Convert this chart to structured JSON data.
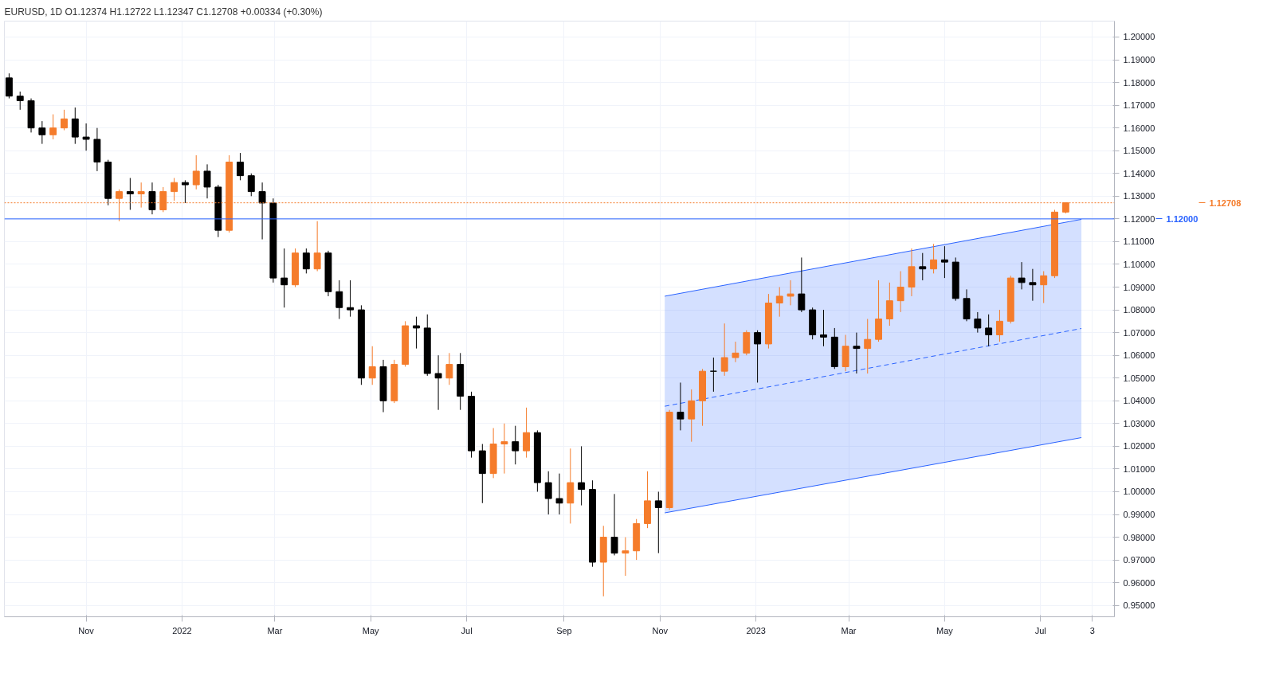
{
  "chart_data": {
    "type": "candlestick",
    "title": "EURUSD, 1D  O1.12374 H1.12722 L1.12347 C1.12708 +0.00334 (+0.30%)",
    "x": [
      "2021-09-13",
      "2021-09-20",
      "2021-09-27",
      "2021-10-04",
      "2021-10-11",
      "2021-10-18",
      "2021-10-25",
      "2021-11-01",
      "2021-11-08",
      "2021-11-15",
      "2021-11-22",
      "2021-11-29",
      "2021-12-06",
      "2021-12-13",
      "2021-12-20",
      "2021-12-27",
      "2022-01-03",
      "2022-01-10",
      "2022-01-17",
      "2022-01-24",
      "2022-01-31",
      "2022-02-07",
      "2022-02-14",
      "2022-02-21",
      "2022-02-28",
      "2022-03-07",
      "2022-03-14",
      "2022-03-21",
      "2022-03-28",
      "2022-04-04",
      "2022-04-11",
      "2022-04-18",
      "2022-04-25",
      "2022-05-02",
      "2022-05-09",
      "2022-05-16",
      "2022-05-23",
      "2022-05-30",
      "2022-06-06",
      "2022-06-13",
      "2022-06-20",
      "2022-06-27",
      "2022-07-04",
      "2022-07-11",
      "2022-07-18",
      "2022-07-25",
      "2022-08-01",
      "2022-08-08",
      "2022-08-15",
      "2022-08-22",
      "2022-08-29",
      "2022-09-05",
      "2022-09-12",
      "2022-09-19",
      "2022-09-26",
      "2022-10-03",
      "2022-10-10",
      "2022-10-17",
      "2022-10-24",
      "2022-10-31",
      "2022-11-07",
      "2022-11-14",
      "2022-11-21",
      "2022-11-28",
      "2022-12-05",
      "2022-12-12",
      "2022-12-19",
      "2022-12-26",
      "2023-01-02",
      "2023-01-09",
      "2023-01-16",
      "2023-01-23",
      "2023-01-30",
      "2023-02-06",
      "2023-02-13",
      "2023-02-20",
      "2023-02-27",
      "2023-03-06",
      "2023-03-13",
      "2023-03-20",
      "2023-03-27",
      "2023-04-03",
      "2023-04-10",
      "2023-04-17",
      "2023-04-24",
      "2023-05-01",
      "2023-05-08",
      "2023-05-15",
      "2023-05-22",
      "2023-05-29",
      "2023-06-05",
      "2023-06-12",
      "2023-06-19",
      "2023-06-26",
      "2023-07-03",
      "2023-07-10",
      "2023-07-17"
    ],
    "ohlc": [
      [
        1.182,
        1.184,
        1.173,
        1.174
      ],
      [
        1.174,
        1.176,
        1.168,
        1.172
      ],
      [
        1.172,
        1.173,
        1.158,
        1.16
      ],
      [
        1.16,
        1.163,
        1.153,
        1.157
      ],
      [
        1.157,
        1.166,
        1.155,
        1.16
      ],
      [
        1.16,
        1.168,
        1.159,
        1.164
      ],
      [
        1.164,
        1.169,
        1.153,
        1.156
      ],
      [
        1.156,
        1.162,
        1.15,
        1.155
      ],
      [
        1.155,
        1.16,
        1.141,
        1.145
      ],
      [
        1.145,
        1.146,
        1.126,
        1.129
      ],
      [
        1.129,
        1.133,
        1.119,
        1.132
      ],
      [
        1.132,
        1.138,
        1.124,
        1.131
      ],
      [
        1.131,
        1.136,
        1.125,
        1.132
      ],
      [
        1.132,
        1.136,
        1.122,
        1.124
      ],
      [
        1.124,
        1.134,
        1.123,
        1.132
      ],
      [
        1.132,
        1.138,
        1.128,
        1.136
      ],
      [
        1.136,
        1.137,
        1.127,
        1.135
      ],
      [
        1.135,
        1.148,
        1.133,
        1.141
      ],
      [
        1.141,
        1.144,
        1.129,
        1.134
      ],
      [
        1.134,
        1.135,
        1.112,
        1.115
      ],
      [
        1.115,
        1.148,
        1.114,
        1.145
      ],
      [
        1.145,
        1.149,
        1.137,
        1.139
      ],
      [
        1.139,
        1.14,
        1.13,
        1.132
      ],
      [
        1.132,
        1.136,
        1.111,
        1.127
      ],
      [
        1.127,
        1.129,
        1.092,
        1.094
      ],
      [
        1.094,
        1.107,
        1.081,
        1.091
      ],
      [
        1.091,
        1.107,
        1.09,
        1.105
      ],
      [
        1.105,
        1.107,
        1.096,
        1.098
      ],
      [
        1.098,
        1.119,
        1.097,
        1.105
      ],
      [
        1.105,
        1.106,
        1.086,
        1.088
      ],
      [
        1.088,
        1.093,
        1.076,
        1.081
      ],
      [
        1.081,
        1.093,
        1.077,
        1.08
      ],
      [
        1.08,
        1.082,
        1.047,
        1.05
      ],
      [
        1.05,
        1.064,
        1.047,
        1.055
      ],
      [
        1.055,
        1.058,
        1.035,
        1.04
      ],
      [
        1.04,
        1.058,
        1.039,
        1.056
      ],
      [
        1.056,
        1.075,
        1.055,
        1.073
      ],
      [
        1.073,
        1.077,
        1.063,
        1.072
      ],
      [
        1.072,
        1.078,
        1.051,
        1.052
      ],
      [
        1.052,
        1.06,
        1.036,
        1.05
      ],
      [
        1.05,
        1.061,
        1.047,
        1.056
      ],
      [
        1.056,
        1.061,
        1.036,
        1.042
      ],
      [
        1.042,
        1.044,
        1.015,
        1.018
      ],
      [
        1.018,
        1.021,
        0.995,
        1.008
      ],
      [
        1.008,
        1.028,
        1.006,
        1.021
      ],
      [
        1.021,
        1.03,
        1.008,
        1.022
      ],
      [
        1.022,
        1.029,
        1.012,
        1.018
      ],
      [
        1.018,
        1.037,
        1.015,
        1.026
      ],
      [
        1.026,
        1.027,
        1.0,
        1.004
      ],
      [
        1.004,
        1.009,
        0.99,
        0.997
      ],
      [
        0.997,
        1.008,
        0.99,
        0.995
      ],
      [
        0.995,
        1.019,
        0.986,
        1.004
      ],
      [
        1.004,
        1.02,
        0.994,
        1.001
      ],
      [
        1.001,
        1.005,
        0.967,
        0.969
      ],
      [
        0.969,
        0.985,
        0.954,
        0.98
      ],
      [
        0.98,
        0.999,
        0.972,
        0.973
      ],
      [
        0.973,
        0.98,
        0.963,
        0.974
      ],
      [
        0.974,
        0.988,
        0.97,
        0.986
      ],
      [
        0.986,
        1.009,
        0.984,
        0.996
      ],
      [
        0.996,
        1.0,
        0.973,
        0.993
      ],
      [
        0.993,
        1.036,
        0.992,
        1.035
      ],
      [
        1.035,
        1.048,
        1.027,
        1.032
      ],
      [
        1.032,
        1.045,
        1.022,
        1.04
      ],
      [
        1.04,
        1.054,
        1.029,
        1.053
      ],
      [
        1.053,
        1.059,
        1.044,
        1.053
      ],
      [
        1.053,
        1.074,
        1.051,
        1.059
      ],
      [
        1.059,
        1.066,
        1.057,
        1.061
      ],
      [
        1.061,
        1.071,
        1.06,
        1.07
      ],
      [
        1.07,
        1.071,
        1.048,
        1.065
      ],
      [
        1.065,
        1.087,
        1.063,
        1.083
      ],
      [
        1.083,
        1.09,
        1.077,
        1.086
      ],
      [
        1.086,
        1.093,
        1.082,
        1.087
      ],
      [
        1.087,
        1.103,
        1.079,
        1.08
      ],
      [
        1.08,
        1.081,
        1.067,
        1.069
      ],
      [
        1.069,
        1.08,
        1.064,
        1.068
      ],
      [
        1.068,
        1.072,
        1.054,
        1.055
      ],
      [
        1.055,
        1.069,
        1.053,
        1.064
      ],
      [
        1.064,
        1.07,
        1.052,
        1.063
      ],
      [
        1.063,
        1.076,
        1.052,
        1.067
      ],
      [
        1.067,
        1.093,
        1.066,
        1.076
      ],
      [
        1.076,
        1.092,
        1.073,
        1.084
      ],
      [
        1.084,
        1.097,
        1.079,
        1.09
      ],
      [
        1.09,
        1.107,
        1.086,
        1.099
      ],
      [
        1.099,
        1.105,
        1.093,
        1.098
      ],
      [
        1.098,
        1.109,
        1.096,
        1.102
      ],
      [
        1.102,
        1.108,
        1.094,
        1.101
      ],
      [
        1.101,
        1.103,
        1.084,
        1.085
      ],
      [
        1.085,
        1.089,
        1.075,
        1.076
      ],
      [
        1.076,
        1.079,
        1.07,
        1.072
      ],
      [
        1.072,
        1.078,
        1.064,
        1.069
      ],
      [
        1.069,
        1.08,
        1.066,
        1.075
      ],
      [
        1.075,
        1.095,
        1.074,
        1.094
      ],
      [
        1.094,
        1.101,
        1.089,
        1.092
      ],
      [
        1.092,
        1.098,
        1.084,
        1.091
      ],
      [
        1.091,
        1.097,
        1.083,
        1.095
      ],
      [
        1.095,
        1.124,
        1.094,
        1.123
      ],
      [
        1.123,
        1.1272,
        1.1224,
        1.1271
      ]
    ],
    "colors": [
      "#000000",
      "#000000",
      "#000000",
      "#000000",
      "#f57c2b",
      "#f57c2b",
      "#000000",
      "#000000",
      "#000000",
      "#000000",
      "#f57c2b",
      "#000000",
      "#f57c2b",
      "#000000",
      "#f57c2b",
      "#f57c2b",
      "#000000",
      "#f57c2b",
      "#000000",
      "#000000",
      "#f57c2b",
      "#000000",
      "#000000",
      "#000000",
      "#000000",
      "#000000",
      "#f57c2b",
      "#000000",
      "#f57c2b",
      "#000000",
      "#000000",
      "#000000",
      "#000000",
      "#f57c2b",
      "#000000",
      "#f57c2b",
      "#f57c2b",
      "#000000",
      "#000000",
      "#000000",
      "#f57c2b",
      "#000000",
      "#000000",
      "#000000",
      "#f57c2b",
      "#f57c2b",
      "#000000",
      "#f57c2b",
      "#000000",
      "#000000",
      "#000000",
      "#f57c2b",
      "#000000",
      "#000000",
      "#f57c2b",
      "#000000",
      "#f57c2b",
      "#f57c2b",
      "#f57c2b",
      "#000000",
      "#f57c2b",
      "#000000",
      "#f57c2b",
      "#f57c2b",
      "#000000",
      "#f57c2b",
      "#f57c2b",
      "#f57c2b",
      "#000000",
      "#f57c2b",
      "#f57c2b",
      "#f57c2b",
      "#000000",
      "#000000",
      "#000000",
      "#000000",
      "#f57c2b",
      "#000000",
      "#f57c2b",
      "#f57c2b",
      "#f57c2b",
      "#f57c2b",
      "#f57c2b",
      "#000000",
      "#f57c2b",
      "#000000",
      "#000000",
      "#000000",
      "#000000",
      "#000000",
      "#f57c2b",
      "#f57c2b",
      "#000000",
      "#000000",
      "#f57c2b",
      "#f57c2b",
      "#f57c2b"
    ],
    "series": [
      {
        "type": "line",
        "x": [
          "2022-11-04",
          "2023-07-27"
        ],
        "values": [
          1.0376,
          1.0718
        ],
        "lower": [
          0.9907,
          1.0238
        ],
        "upper": [
          1.086,
          1.1198
        ],
        "color": "#2962ff",
        "line_style": "dashed"
      },
      {
        "type": "line",
        "x": [
          "2022-11-04",
          "2023-07-27"
        ],
        "values": [
          1.086,
          1.1198
        ],
        "color": "#2962ff",
        "line_style": "solid"
      },
      {
        "type": "line",
        "x": [
          "2022-11-04",
          "2023-07-27"
        ],
        "values": [
          0.9907,
          1.0238
        ],
        "color": "#2962ff",
        "line_style": "solid"
      }
    ],
    "ref_lines": [
      {
        "axis": "y",
        "value": 1.12,
        "label": "1.12000",
        "color": "#2962ff",
        "line_style": "solid"
      },
      {
        "axis": "y",
        "value": 1.12708,
        "label": "1.12708",
        "color": "#f57c2b",
        "line_style": "dotted"
      }
    ],
    "xlim": [
      "2021-09-10",
      "2023-08-17"
    ],
    "xticks": [
      {
        "value": "2021-11-01",
        "label": "Nov"
      },
      {
        "value": "2022-01-01",
        "label": "2022"
      },
      {
        "value": "2022-03-01",
        "label": "Mar"
      },
      {
        "value": "2022-05-01",
        "label": "May"
      },
      {
        "value": "2022-07-01",
        "label": "Jul"
      },
      {
        "value": "2022-09-01",
        "label": "Sep"
      },
      {
        "value": "2022-11-01",
        "label": "Nov"
      },
      {
        "value": "2023-01-01",
        "label": "2023"
      },
      {
        "value": "2023-03-01",
        "label": "Mar"
      },
      {
        "value": "2023-05-01",
        "label": "May"
      },
      {
        "value": "2023-07-01",
        "label": "Jul"
      },
      {
        "value": "2023-08-03",
        "label": "3"
      }
    ],
    "ylim": [
      0.945,
      1.207
    ],
    "yticks": [
      {
        "value": 0.95,
        "label": "0.95000"
      },
      {
        "value": 0.96,
        "label": "0.96000"
      },
      {
        "value": 0.97,
        "label": "0.97000"
      },
      {
        "value": 0.98,
        "label": "0.98000"
      },
      {
        "value": 0.99,
        "label": "0.99000"
      },
      {
        "value": 1.0,
        "label": "1.00000"
      },
      {
        "value": 1.01,
        "label": "1.01000"
      },
      {
        "value": 1.02,
        "label": "1.02000"
      },
      {
        "value": 1.03,
        "label": "1.03000"
      },
      {
        "value": 1.04,
        "label": "1.04000"
      },
      {
        "value": 1.05,
        "label": "1.05000"
      },
      {
        "value": 1.06,
        "label": "1.06000"
      },
      {
        "value": 1.07,
        "label": "1.07000"
      },
      {
        "value": 1.08,
        "label": "1.08000"
      },
      {
        "value": 1.09,
        "label": "1.09000"
      },
      {
        "value": 1.1,
        "label": "1.10000"
      },
      {
        "value": 1.11,
        "label": "1.11000"
      },
      {
        "value": 1.12,
        "label": "1.12000"
      },
      {
        "value": 1.13,
        "label": "1.13000"
      },
      {
        "value": 1.14,
        "label": "1.14000"
      },
      {
        "value": 1.15,
        "label": "1.15000"
      },
      {
        "value": 1.16,
        "label": "1.16000"
      },
      {
        "value": 1.17,
        "label": "1.17000"
      },
      {
        "value": 1.18,
        "label": "1.18000"
      },
      {
        "value": 1.19,
        "label": "1.19000"
      },
      {
        "value": 1.2,
        "label": "1.20000"
      }
    ],
    "grid": true
  }
}
